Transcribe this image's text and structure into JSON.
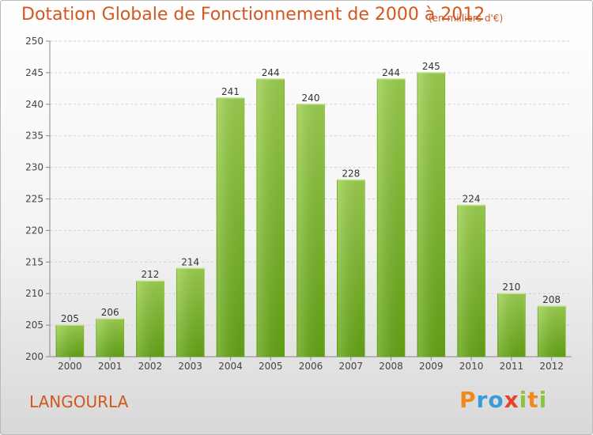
{
  "header": {
    "title": "Dotation Globale de Fonctionnement de 2000 à 2012",
    "unit": "(en milliers d'€)"
  },
  "footer": {
    "commune": "LANGOURLA",
    "logo_letters": [
      "P",
      "r",
      "o",
      "x",
      "i",
      "t",
      "i"
    ],
    "logo_colors": [
      "#f08a1c",
      "#3a9bd9",
      "#3a9bd9",
      "#e8432a",
      "#8bc53f",
      "#f08a1c",
      "#8bc53f"
    ]
  },
  "chart_data": {
    "type": "bar",
    "categories": [
      "2000",
      "2001",
      "2002",
      "2003",
      "2004",
      "2005",
      "2006",
      "2007",
      "2008",
      "2009",
      "2010",
      "2011",
      "2012"
    ],
    "values": [
      205,
      206,
      212,
      214,
      241,
      244,
      240,
      228,
      244,
      245,
      224,
      210,
      208
    ],
    "data_labels": [
      "205",
      "206",
      "212",
      "214",
      "241",
      "244",
      "240",
      "228",
      "244",
      "245",
      "224",
      "210",
      "208"
    ],
    "yticks": [
      "200",
      "205",
      "210",
      "215",
      "220",
      "225",
      "230",
      "235",
      "240",
      "245",
      "250"
    ],
    "ylim": [
      200,
      250
    ],
    "grid": true,
    "bar_color": "#7dbb2c"
  }
}
